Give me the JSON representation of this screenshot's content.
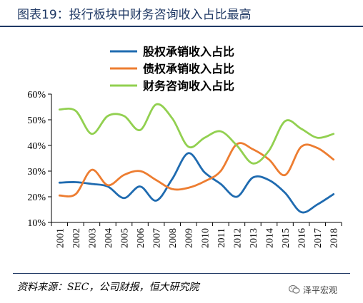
{
  "header": {
    "title": "图表19：投行板块中财务咨询收入占比最高"
  },
  "footer": {
    "source": "资料来源：SEC，公司财报，恒大研究院",
    "watermark": "泽平宏观"
  },
  "icons": {
    "watermark_logo": "wechat-logo-icon"
  },
  "chart_data": {
    "type": "line",
    "x": [
      "2001",
      "2002",
      "2003",
      "2004",
      "2005",
      "2006",
      "2007",
      "2008",
      "2009",
      "2010",
      "2011",
      "2012",
      "2013",
      "2014",
      "2015",
      "2016",
      "2017",
      "2018"
    ],
    "series": [
      {
        "name": "股权承销收入占比",
        "color": "#1f6bb0",
        "values": [
          25.5,
          25.7,
          25.0,
          24.0,
          19.5,
          24.0,
          18.5,
          27.0,
          37.0,
          29.5,
          25.0,
          20.0,
          27.5,
          26.5,
          21.5,
          14.0,
          17.0,
          21.0
        ]
      },
      {
        "name": "债权承销收入占比",
        "color": "#ed7d31",
        "values": [
          20.5,
          21.0,
          30.5,
          24.5,
          28.5,
          30.0,
          26.5,
          23.0,
          23.5,
          26.0,
          30.0,
          40.5,
          38.5,
          34.5,
          28.5,
          39.5,
          39.0,
          34.5
        ]
      },
      {
        "name": "财务咨询收入占比",
        "color": "#92d050",
        "values": [
          54.0,
          53.5,
          44.5,
          51.5,
          51.5,
          46.0,
          56.0,
          50.5,
          39.5,
          43.0,
          45.5,
          40.0,
          33.0,
          38.0,
          49.5,
          46.5,
          43.0,
          44.5
        ]
      }
    ],
    "yticks": [
      "10%",
      "20%",
      "30%",
      "40%",
      "50%",
      "60%"
    ],
    "ylim": [
      10,
      60
    ],
    "unit": "%",
    "grid": false,
    "legend_position": "top-center"
  }
}
